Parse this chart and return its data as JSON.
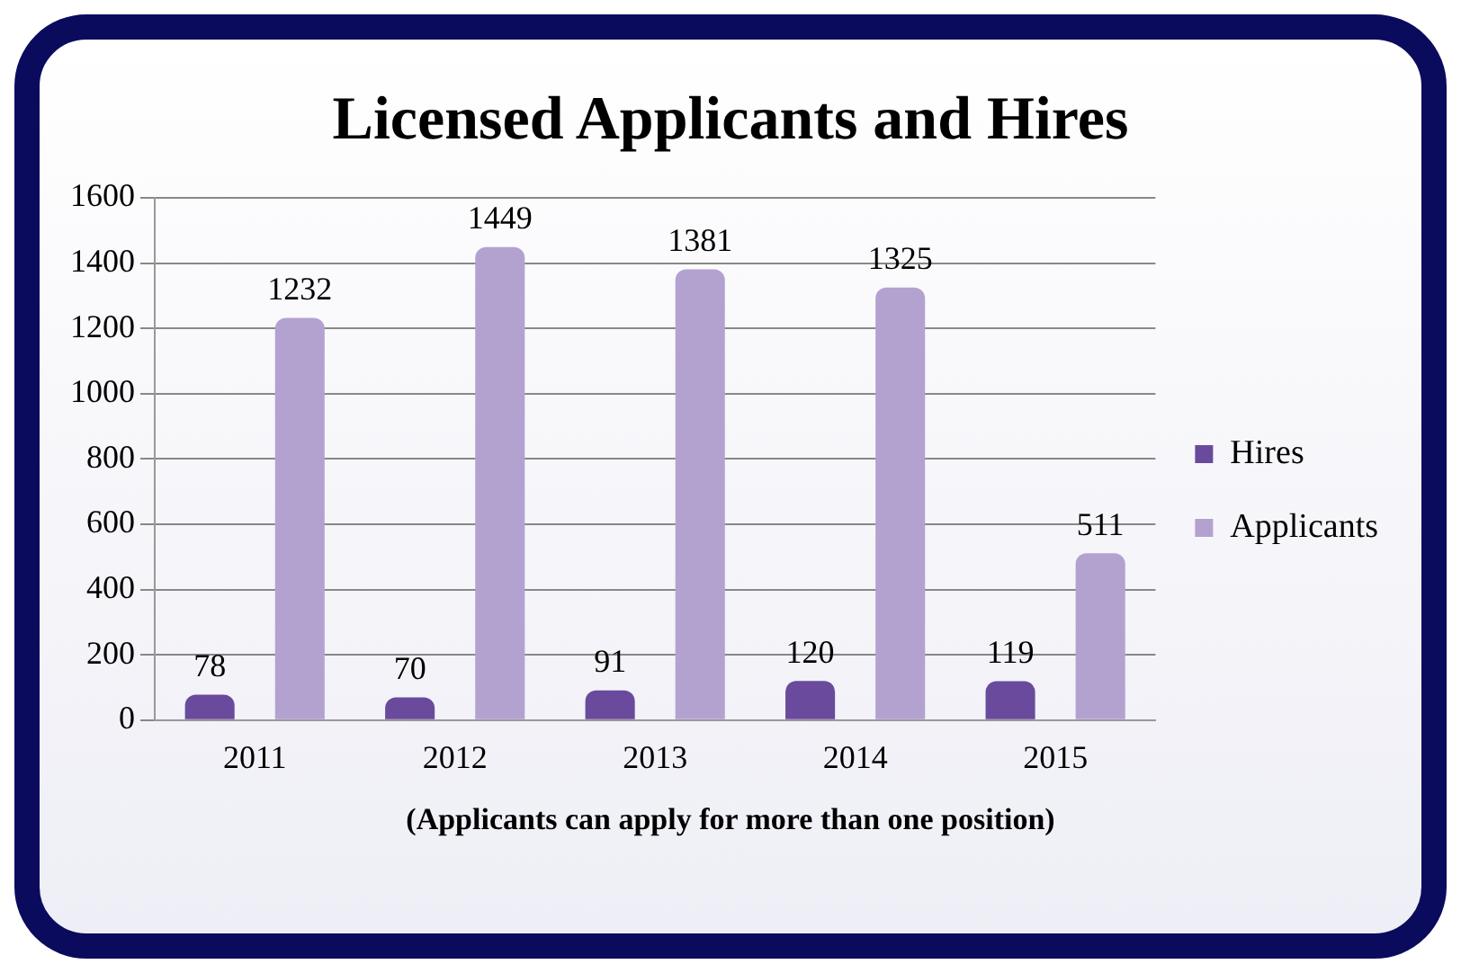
{
  "chart_data": {
    "type": "bar",
    "title": "Licensed Applicants and Hires",
    "categories": [
      "2011",
      "2012",
      "2013",
      "2014",
      "2015"
    ],
    "series": [
      {
        "name": "Hires",
        "color": "#6a4a9c",
        "values": [
          78,
          70,
          91,
          120,
          119
        ]
      },
      {
        "name": "Applicants",
        "color": "#b3a2d0",
        "values": [
          1232,
          1449,
          1381,
          1325,
          511
        ]
      }
    ],
    "ylim": [
      0,
      1600
    ],
    "yticks": [
      0,
      200,
      400,
      600,
      800,
      1000,
      1200,
      1400,
      1600
    ],
    "grid": "y",
    "legend": "right",
    "data_labels": true,
    "annotations": [
      "(Applicants can apply for more than one position)"
    ]
  }
}
